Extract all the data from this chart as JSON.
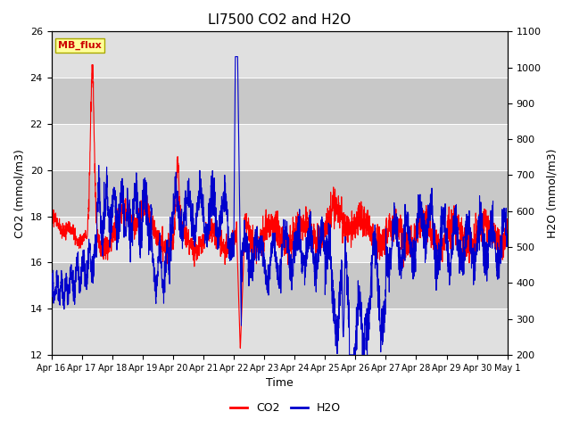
{
  "title": "LI7500 CO2 and H2O",
  "xlabel": "Time",
  "ylabel_left": "CO2 (mmol/m3)",
  "ylabel_right": "H2O (mmol/m3)",
  "ylim_left": [
    12,
    26
  ],
  "ylim_right": [
    200,
    1100
  ],
  "yticks_left": [
    12,
    14,
    16,
    18,
    20,
    22,
    24,
    26
  ],
  "yticks_right": [
    200,
    300,
    400,
    500,
    600,
    700,
    800,
    900,
    1000,
    1100
  ],
  "xtick_labels": [
    "Apr 16",
    "Apr 17",
    "Apr 18",
    "Apr 19",
    "Apr 20",
    "Apr 21",
    "Apr 22",
    "Apr 23",
    "Apr 24",
    "Apr 25",
    "Apr 26",
    "Apr 27",
    "Apr 28",
    "Apr 29",
    "Apr 30",
    "May 1"
  ],
  "co2_color": "#FF0000",
  "h2o_color": "#0000CC",
  "fig_bg_color": "#FFFFFF",
  "plot_bg_color": "#DCDCDC",
  "band_color_dark": "#C8C8C8",
  "band_color_light": "#E0E0E0",
  "annotation_box_color": "#FFFF99",
  "annotation_box_edge": "#AAAA00",
  "annotation_text": "MB_flux",
  "annotation_text_color": "#CC0000",
  "legend_co2": "CO2",
  "legend_h2o": "H2O",
  "line_width": 0.8,
  "grid_color": "#FFFFFF",
  "title_fontsize": 11,
  "axis_label_fontsize": 9,
  "tick_fontsize": 8
}
